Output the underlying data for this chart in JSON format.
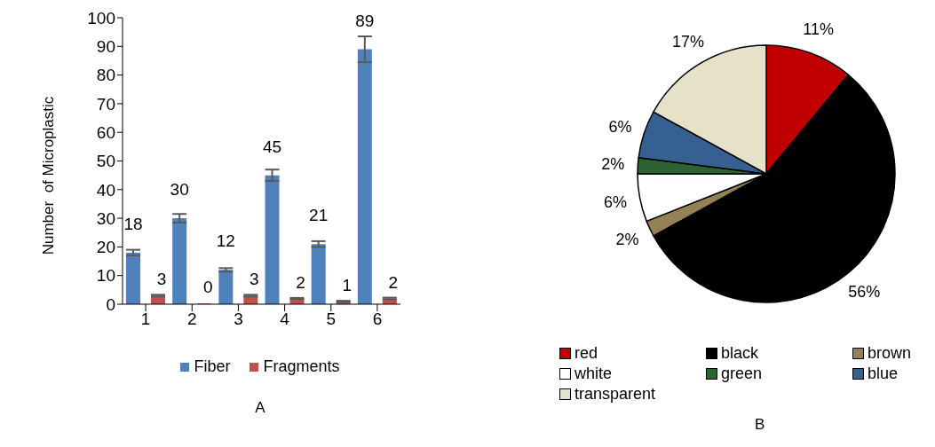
{
  "chart_data": [
    {
      "type": "bar",
      "title": "A",
      "ylabel": "Number  of Microplastic",
      "categories": [
        "1",
        "2",
        "3",
        "4",
        "5",
        "6"
      ],
      "series": [
        {
          "name": "Fiber",
          "color": "#4f81bd",
          "values": [
            18,
            30,
            12,
            45,
            21,
            89
          ],
          "errors": [
            1,
            1.5,
            0.6,
            2,
            1,
            4.5
          ]
        },
        {
          "name": "Fragments",
          "color": "#c0504d",
          "values": [
            3,
            0,
            3,
            2,
            1,
            2
          ],
          "errors": [
            0.3,
            null,
            0.3,
            0.2,
            0.2,
            0.3
          ]
        }
      ],
      "ylim": [
        0,
        100
      ],
      "yticks": [
        0,
        10,
        20,
        30,
        40,
        50,
        60,
        70,
        80,
        90,
        100
      ],
      "data_labels": true,
      "legend": "bottom"
    },
    {
      "type": "pie",
      "title": "B",
      "categories": [
        "red",
        "black",
        "brown",
        "white",
        "green",
        "blue",
        "transparent"
      ],
      "values": [
        11,
        56,
        2,
        6,
        2,
        6,
        17
      ],
      "value_labels": [
        "11%",
        "56%",
        "2%",
        "6%",
        "2%",
        "6%",
        "17%"
      ],
      "colors": [
        "#c00000",
        "#000000",
        "#948156",
        "#ffffff",
        "#2d6332",
        "#376092",
        "#e6e1c9"
      ],
      "legend": "bottom"
    }
  ]
}
